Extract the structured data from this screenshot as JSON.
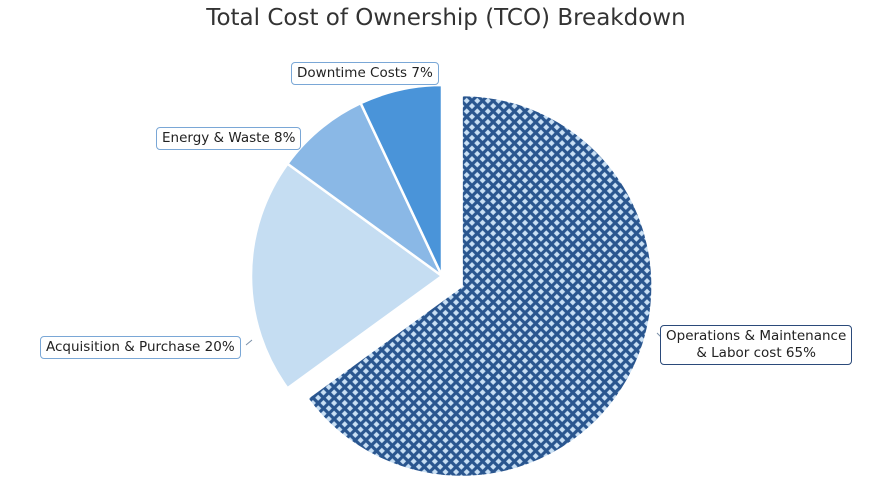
{
  "chart_data": {
    "type": "pie",
    "title": "Total Cost of Ownership (TCO) Breakdown",
    "slices": [
      {
        "name": "Operations & Maintenance & Labor cost",
        "value": 65,
        "label": [
          "Operations & Maintenance",
          "& Labor cost 65%"
        ],
        "color": "#2f5f9e",
        "pattern": "checker",
        "exploded": true
      },
      {
        "name": "Acquisition & Purchase",
        "value": 20,
        "label": [
          "Acquisition & Purchase 20%"
        ],
        "color": "#c5ddf2"
      },
      {
        "name": "Energy & Waste",
        "value": 8,
        "label": [
          "Energy & Waste 8%"
        ],
        "color": "#8ab8e6"
      },
      {
        "name": "Downtime Costs",
        "value": 7,
        "label": [
          "Downtime Costs 7%"
        ],
        "color": "#4a94d9"
      }
    ],
    "start_angle_deg": 0,
    "direction": "clockwise"
  }
}
